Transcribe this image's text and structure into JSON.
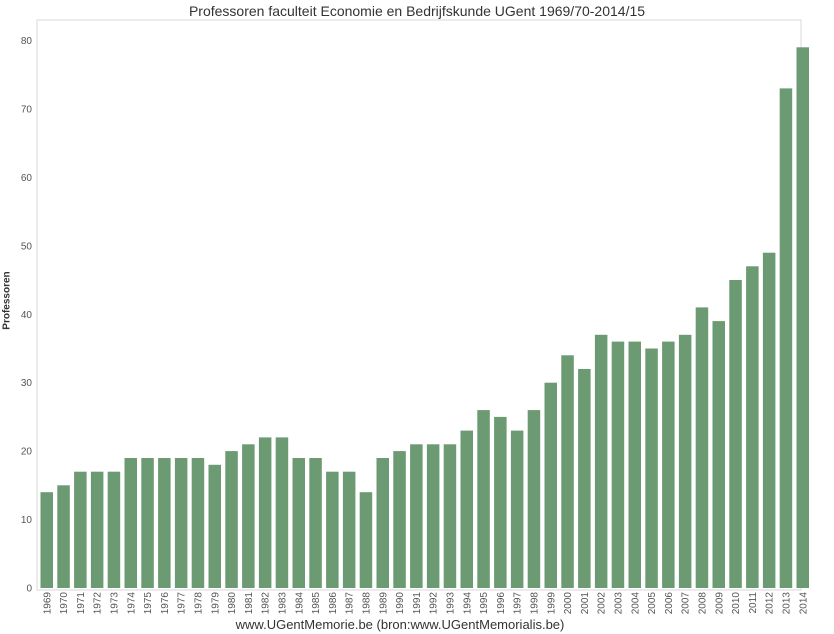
{
  "chart_data": {
    "type": "bar",
    "title": "Professoren faculteit Economie en Bedrijfskunde UGent 1969/70-2014/15",
    "xlabel": "",
    "ylabel": "Professoren",
    "ylim": [
      0,
      80
    ],
    "yticks": [
      0,
      10,
      20,
      30,
      40,
      50,
      60,
      70,
      80
    ],
    "grid": false,
    "bar_color": "#6b9a73",
    "categories": [
      "1969",
      "1970",
      "1971",
      "1972",
      "1973",
      "1974",
      "1975",
      "1976",
      "1977",
      "1978",
      "1979",
      "1980",
      "1981",
      "1982",
      "1983",
      "1984",
      "1985",
      "1986",
      "1987",
      "1988",
      "1989",
      "1990",
      "1991",
      "1992",
      "1993",
      "1994",
      "1995",
      "1996",
      "1997",
      "1998",
      "1999",
      "2000",
      "2001",
      "2002",
      "2003",
      "2004",
      "2005",
      "2006",
      "2007",
      "2008",
      "2009",
      "2010",
      "2011",
      "2012",
      "2013",
      "2014"
    ],
    "values": [
      14,
      15,
      17,
      17,
      17,
      19,
      19,
      19,
      19,
      19,
      18,
      20,
      21,
      22,
      22,
      19,
      19,
      17,
      17,
      14,
      19,
      20,
      21,
      21,
      21,
      23,
      26,
      25,
      23,
      26,
      30,
      34,
      32,
      37,
      36,
      36,
      35,
      36,
      37,
      41,
      39,
      45,
      47,
      49,
      73,
      79
    ],
    "footer": "www.UGentMemorie.be (bron:www.UGentMemorialis.be)"
  }
}
